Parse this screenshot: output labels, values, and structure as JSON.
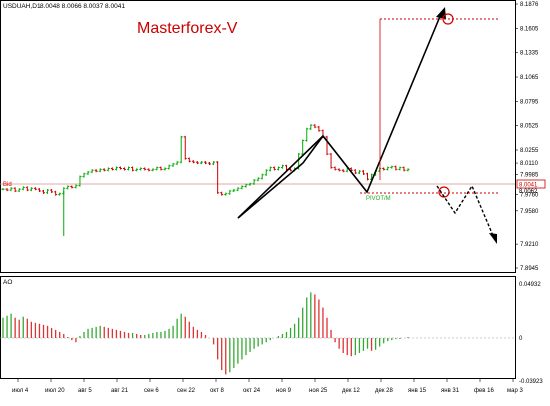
{
  "header": {
    "symbol": "USDUAH,D1",
    "ohlc": "8.0048  8.0066  8.0037  8.0041"
  },
  "watermark": "Masterforex-V",
  "bid_label": "Bid",
  "current_price_label": "8.0041",
  "price_note_label": "8.0062",
  "annotation_label": "PIVOT/M",
  "indicator": {
    "name": "AO",
    "max_label": "0.04932",
    "zero_label": "0",
    "min_label": "-0.03923"
  },
  "colors": {
    "up": "#00aa00",
    "down": "#cc0000",
    "bar": "#000000",
    "oscillator_up": "#33aa33",
    "oscillator_down": "#dd3333",
    "arrow": "#000000",
    "level": "#cc0000"
  },
  "price_axis": {
    "ticks": [
      "8.1876",
      "8.1605",
      "8.1335",
      "8.1065",
      "8.0795",
      "8.0525",
      "8.0255",
      "8.0110",
      "7.9985",
      "7.9760",
      "7.9580",
      "7.9210",
      "7.8945"
    ]
  },
  "time_axis": {
    "ticks": [
      "июл 4",
      "июл 20",
      "авг 5",
      "авг 21",
      "сен 6",
      "сен 22",
      "окт 8",
      "окт 24",
      "ноя 9",
      "ноя 25",
      "дек 12",
      "дек 28",
      "янв 15",
      "янв 31",
      "фев 16",
      "мар 3"
    ]
  },
  "chart_data": {
    "type": "candlestick",
    "symbol": "USDUAH",
    "timeframe": "D1",
    "last_price": 8.0041,
    "ylim": [
      7.8945,
      8.1876
    ],
    "candles_close": [
      7.982,
      7.981,
      7.983,
      7.98,
      7.982,
      7.984,
      7.981,
      7.983,
      7.982,
      7.98,
      7.978,
      7.981,
      7.979,
      7.976,
      7.977,
      7.983,
      7.985,
      7.984,
      7.986,
      7.996,
      7.999,
      8.001,
      8.003,
      8.002,
      8.004,
      8.003,
      8.005,
      8.004,
      8.006,
      8.005,
      8.004,
      8.006,
      8.003,
      8.004,
      8.005,
      8.004,
      8.003,
      8.004,
      8.006,
      8.004,
      8.005,
      8.008,
      8.01,
      8.012,
      8.04,
      8.016,
      8.013,
      8.012,
      8.011,
      8.012,
      8.011,
      8.01,
      8.012,
      7.978,
      7.976,
      7.977,
      7.98,
      7.981,
      7.983,
      7.985,
      7.987,
      7.988,
      7.992,
      7.994,
      7.998,
      8.003,
      8.006,
      8.004,
      8.006,
      8.008,
      8.004,
      8.003,
      8.005,
      8.021,
      8.036,
      8.049,
      8.053,
      8.051,
      8.047,
      8.04,
      8.021,
      8.006,
      8.004,
      8.003,
      8.002,
      8.005,
      8.003,
      8.0,
      8.002,
      7.999,
      7.993,
      7.998,
      8.002,
      8.005,
      8.004,
      8.006,
      8.007,
      8.004,
      8.006,
      8.003,
      8.004
    ],
    "ao_values": [
      0.02,
      0.022,
      0.024,
      0.02,
      0.018,
      0.021,
      0.019,
      0.016,
      0.015,
      0.014,
      0.013,
      0.012,
      0.01,
      0.008,
      0.006,
      0.004,
      0.001,
      -0.002,
      -0.004,
      0.002,
      0.006,
      0.009,
      0.01,
      0.011,
      0.012,
      0.011,
      0.01,
      0.009,
      0.008,
      0.007,
      0.006,
      0.005,
      0.005,
      0.004,
      0.003,
      0.003,
      0.004,
      0.005,
      0.006,
      0.006,
      0.007,
      0.009,
      0.012,
      0.019,
      0.024,
      0.021,
      0.016,
      0.011,
      0.008,
      0.006,
      0.003,
      0.0,
      -0.006,
      -0.02,
      -0.03,
      -0.034,
      -0.032,
      -0.028,
      -0.024,
      -0.02,
      -0.016,
      -0.013,
      -0.01,
      -0.008,
      -0.006,
      -0.004,
      -0.002,
      0.0,
      0.002,
      0.004,
      0.006,
      0.01,
      0.014,
      0.02,
      0.03,
      0.04,
      0.045,
      0.043,
      0.038,
      0.03,
      0.02,
      0.008,
      -0.004,
      -0.01,
      -0.014,
      -0.016,
      -0.017,
      -0.016,
      -0.014,
      -0.012,
      -0.01,
      -0.012,
      -0.011,
      -0.008,
      -0.005,
      -0.003,
      -0.002,
      -0.001,
      -0.001,
      0.0,
      0.001
    ]
  }
}
